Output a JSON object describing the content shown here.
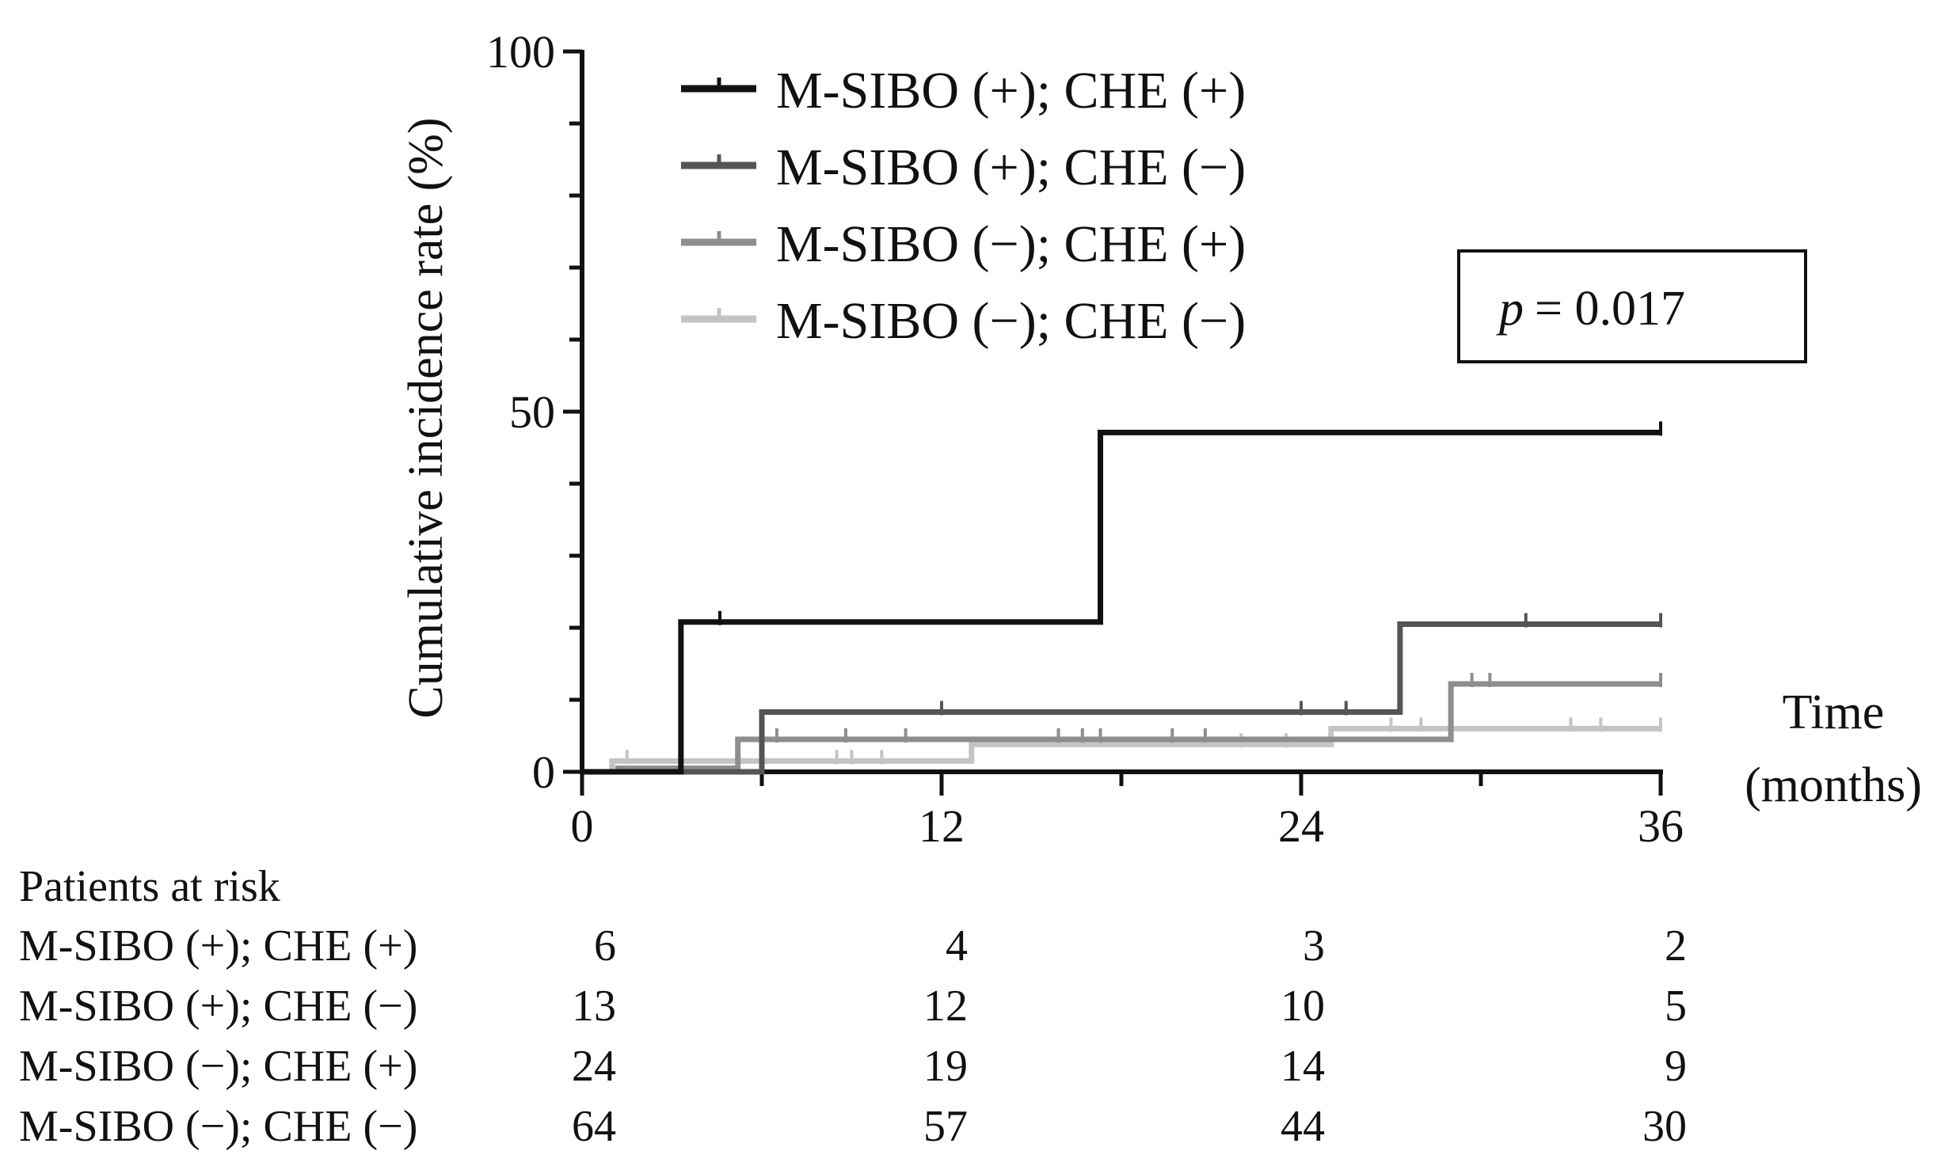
{
  "chart_data": {
    "type": "step-line",
    "ylabel": "Cumulative incidence rate (%)",
    "xlabel": "Time\n(months)",
    "xlabel_lines": [
      "Time",
      "(months)"
    ],
    "xlim": [
      0,
      36
    ],
    "ylim": [
      0,
      100
    ],
    "x_ticks": [
      0,
      12,
      24,
      36
    ],
    "y_ticks_labeled": [
      0,
      50,
      100
    ],
    "y_minor_step": 10,
    "x_minor_step": 6,
    "grid": false,
    "legend_position": "top",
    "annotation": {
      "prefix": "p",
      "text": "= 0.017"
    },
    "series": [
      {
        "name": "M-SIBO  (+); CHE (+)",
        "color": "#111111",
        "steps": [
          [
            0,
            0
          ],
          [
            3.3,
            20.8
          ],
          [
            17.3,
            47.1
          ]
        ],
        "end": 36,
        "censors": [
          4.6,
          36
        ]
      },
      {
        "name": "M-SIBO  (+); CHE (−)",
        "color": "#555555",
        "steps": [
          [
            0,
            0
          ],
          [
            6.0,
            8.3
          ],
          [
            27.3,
            20.5
          ]
        ],
        "end": 36,
        "censors": [
          12.0,
          24.0,
          25.5,
          31.5,
          36
        ]
      },
      {
        "name": "M-SIBO  (−); CHE (+)",
        "color": "#8e8e8e",
        "steps": [
          [
            0,
            0
          ],
          [
            1.2,
            0.5
          ],
          [
            5.2,
            4.5
          ],
          [
            29.0,
            12.2
          ]
        ],
        "end": 36,
        "censors": [
          6.5,
          8.8,
          10.8,
          15.9,
          16.7,
          17.3,
          19.7,
          20.8,
          29.7,
          30.3,
          36
        ]
      },
      {
        "name": "M-SIBO  (−); CHE (−)",
        "color": "#c4c4c4",
        "steps": [
          [
            0,
            0
          ],
          [
            1.0,
            1.5
          ],
          [
            13.0,
            3.8
          ],
          [
            25.0,
            6.0
          ]
        ],
        "end": 36,
        "censors": [
          1.5,
          8.5,
          9.0,
          10.0,
          22.0,
          23.5,
          27.0,
          28.0,
          33.0,
          34.0,
          36
        ]
      }
    ],
    "risk_table": {
      "title": "Patients at risk",
      "times": [
        0,
        12,
        24,
        36
      ],
      "rows": [
        {
          "label": "M-SIBO  (+); CHE (+)",
          "values": [
            "6",
            "4",
            "3",
            "2"
          ]
        },
        {
          "label": "M-SIBO  (+); CHE (−)",
          "values": [
            "13",
            "12",
            "10",
            "5"
          ]
        },
        {
          "label": "M-SIBO  (−); CHE (+)",
          "values": [
            "24",
            "19",
            "14",
            "9"
          ]
        },
        {
          "label": "M-SIBO  (−); CHE (−)",
          "values": [
            "64",
            "57",
            "44",
            "30"
          ]
        }
      ]
    }
  }
}
